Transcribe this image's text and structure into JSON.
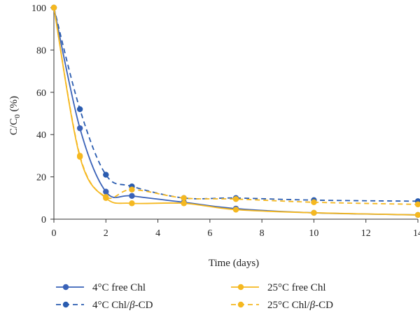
{
  "chart_data": {
    "type": "line",
    "title": "",
    "xlabel": "Time (days)",
    "ylabel_main": "C/C",
    "ylabel_sub": "0",
    "ylabel_suffix": " (%)",
    "xlim": [
      0,
      14
    ],
    "ylim": [
      0,
      100
    ],
    "xticks": [
      "0",
      "2",
      "4",
      "6",
      "8",
      "10",
      "12",
      "14"
    ],
    "yticks": [
      "0",
      "20",
      "40",
      "60",
      "80",
      "100"
    ],
    "x": [
      0,
      1,
      2,
      3,
      5,
      7,
      10,
      14
    ],
    "series": [
      {
        "name_prefix": "4°C free Chl",
        "name_italic": "",
        "name_suffix": "",
        "color": "#3a62b8",
        "dashed": false,
        "values": [
          100,
          43,
          13,
          11,
          8,
          5,
          3,
          2
        ]
      },
      {
        "name_prefix": "4°C Chl/",
        "name_italic": "β",
        "name_suffix": "-CD",
        "color": "#2a5cb0",
        "dashed": true,
        "values": [
          100,
          52,
          21,
          15.5,
          10,
          10,
          9,
          8.5
        ]
      },
      {
        "name_prefix": "25°C free Chl",
        "name_italic": "",
        "name_suffix": "",
        "color": "#f5b820",
        "dashed": false,
        "values": [
          100,
          29.5,
          10,
          7.5,
          7.5,
          4.5,
          3,
          2
        ]
      },
      {
        "name_prefix": "25°C Chl/",
        "name_italic": "β",
        "name_suffix": "-CD",
        "color": "#f5b820",
        "dashed": true,
        "values": [
          100,
          30,
          10.5,
          14,
          10,
          9.5,
          8,
          7
        ]
      }
    ],
    "legend": "bottom"
  }
}
